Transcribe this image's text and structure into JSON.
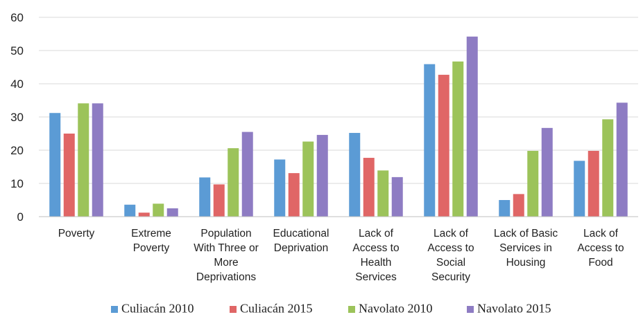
{
  "chart_data": {
    "type": "bar",
    "title": "",
    "xlabel": "",
    "ylabel": "",
    "ylim": [
      0,
      60
    ],
    "yticks": [
      0,
      10,
      20,
      30,
      40,
      50,
      60
    ],
    "grid": true,
    "legend_position": "bottom",
    "categories": [
      [
        "Poverty"
      ],
      [
        "Extreme",
        "Poverty"
      ],
      [
        "Population",
        "With Three or",
        "More",
        "Deprivations"
      ],
      [
        "Educational",
        "Deprivation"
      ],
      [
        "Lack of",
        "Access to",
        "Health",
        "Services"
      ],
      [
        "Lack of",
        "Access to",
        "Social",
        "Security"
      ],
      [
        "Lack of Basic",
        "Services in",
        "Housing"
      ],
      [
        "Lack of",
        "Access to",
        "Food"
      ]
    ],
    "series": [
      {
        "name": "Culiacán 2010",
        "color": "#5b9bd5",
        "values": [
          31.2,
          3.6,
          11.8,
          17.2,
          25.2,
          45.9,
          5.0,
          16.8
        ]
      },
      {
        "name": "Culiacán 2015",
        "color": "#e06666",
        "values": [
          25.0,
          1.2,
          9.7,
          13.1,
          17.7,
          42.7,
          6.8,
          19.8
        ]
      },
      {
        "name": "Navolato 2010",
        "color": "#9cc35a",
        "values": [
          34.1,
          3.9,
          20.6,
          22.6,
          13.9,
          46.7,
          19.8,
          29.3
        ]
      },
      {
        "name": "Navolato 2015",
        "color": "#8e7cc3",
        "values": [
          34.1,
          2.5,
          25.5,
          24.6,
          11.9,
          54.2,
          26.7,
          34.3
        ]
      }
    ]
  }
}
